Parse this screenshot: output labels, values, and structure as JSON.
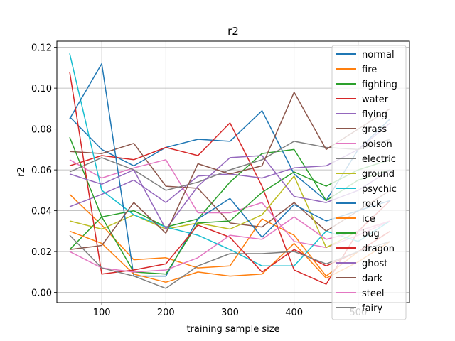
{
  "chart_data": {
    "type": "line",
    "title": "r2",
    "xlabel": "training sample size",
    "ylabel": "r2",
    "xlim": [
      30,
      580
    ],
    "ylim": [
      -0.005,
      0.123
    ],
    "xticks": [
      100,
      200,
      300,
      400,
      500
    ],
    "yticks": [
      "0.00",
      "0.02",
      "0.04",
      "0.06",
      "0.08",
      "0.10",
      "0.12"
    ],
    "ytick_values": [
      0,
      0.02,
      0.04,
      0.06,
      0.08,
      0.1,
      0.12
    ],
    "grid": true,
    "legend_position": "upper-right",
    "x": [
      50,
      100,
      150,
      200,
      250,
      300,
      350,
      400,
      450,
      500,
      550
    ],
    "series": [
      {
        "name": "normal",
        "color": "#1f77b4",
        "values": [
          0.086,
          0.07,
          0.062,
          0.071,
          0.075,
          0.074,
          0.089,
          0.058,
          0.045,
          0.07,
          0.085
        ]
      },
      {
        "name": "fire",
        "color": "#ff7f0e",
        "values": [
          0.048,
          0.033,
          0.016,
          0.017,
          0.012,
          0.013,
          0.036,
          0.028,
          0.008,
          0.02,
          0.03
        ]
      },
      {
        "name": "fighting",
        "color": "#2ca02c",
        "values": [
          0.021,
          0.037,
          0.04,
          0.032,
          0.036,
          0.054,
          0.068,
          0.07,
          0.045,
          0.055,
          0.06
        ]
      },
      {
        "name": "water",
        "color": "#d62728",
        "values": [
          0.062,
          0.067,
          0.065,
          0.071,
          0.067,
          0.083,
          0.052,
          0.011,
          0.004,
          0.03,
          0.045
        ]
      },
      {
        "name": "flying",
        "color": "#9467bd",
        "values": [
          0.042,
          0.048,
          0.055,
          0.044,
          0.057,
          0.058,
          0.056,
          0.061,
          0.062,
          0.07,
          0.083
        ]
      },
      {
        "name": "grass",
        "color": "#8c564b",
        "values": [
          0.069,
          0.068,
          0.073,
          0.052,
          0.051,
          0.034,
          0.032,
          0.044,
          0.03,
          0.04,
          0.05
        ]
      },
      {
        "name": "poison",
        "color": "#e377c2",
        "values": [
          0.065,
          0.056,
          0.061,
          0.065,
          0.039,
          0.039,
          0.044,
          0.025,
          0.022,
          0.028,
          0.035
        ]
      },
      {
        "name": "electric",
        "color": "#7f7f7f",
        "values": [
          0.059,
          0.066,
          0.06,
          0.05,
          0.054,
          0.06,
          0.065,
          0.074,
          0.071,
          0.07,
          0.075
        ]
      },
      {
        "name": "ground",
        "color": "#bcbd22",
        "values": [
          0.035,
          0.031,
          0.038,
          0.031,
          0.034,
          0.031,
          0.038,
          0.057,
          0.022,
          0.03,
          0.035
        ]
      },
      {
        "name": "psychic",
        "color": "#17becf",
        "values": [
          0.117,
          0.05,
          0.038,
          0.032,
          0.028,
          0.021,
          0.013,
          0.013,
          0.03,
          0.025,
          0.035
        ]
      },
      {
        "name": "rock",
        "color": "#1f77b4",
        "values": [
          0.085,
          0.112,
          0.008,
          0.008,
          0.036,
          0.046,
          0.027,
          0.043,
          0.035,
          0.04,
          0.045
        ]
      },
      {
        "name": "ice",
        "color": "#ff7f0e",
        "values": [
          0.03,
          0.024,
          0.009,
          0.005,
          0.01,
          0.008,
          0.009,
          0.024,
          0.007,
          0.015,
          0.025
        ]
      },
      {
        "name": "bug",
        "color": "#2ca02c",
        "values": [
          0.076,
          0.037,
          0.01,
          0.009,
          0.034,
          0.035,
          0.049,
          0.059,
          0.052,
          0.06,
          0.065
        ]
      },
      {
        "name": "dragon",
        "color": "#d62728",
        "values": [
          0.108,
          0.009,
          0.011,
          0.014,
          0.033,
          0.027,
          0.01,
          0.021,
          0.013,
          0.02,
          0.03
        ]
      },
      {
        "name": "ghost",
        "color": "#9467bd",
        "values": [
          0.058,
          0.053,
          0.06,
          0.031,
          0.052,
          0.066,
          0.067,
          0.047,
          0.044,
          0.05,
          0.06
        ]
      },
      {
        "name": "dark",
        "color": "#8c564b",
        "values": [
          0.021,
          0.023,
          0.044,
          0.029,
          0.063,
          0.058,
          0.062,
          0.098,
          0.07,
          0.08,
          0.09
        ]
      },
      {
        "name": "steel",
        "color": "#e377c2",
        "values": [
          0.02,
          0.012,
          0.01,
          0.011,
          0.017,
          0.028,
          0.026,
          0.037,
          0.026,
          0.03,
          0.035
        ]
      },
      {
        "name": "fairy",
        "color": "#7f7f7f",
        "values": [
          0.028,
          0.012,
          0.008,
          0.002,
          0.013,
          0.019,
          0.019,
          0.02,
          0.014,
          0.02,
          0.025
        ]
      }
    ]
  }
}
